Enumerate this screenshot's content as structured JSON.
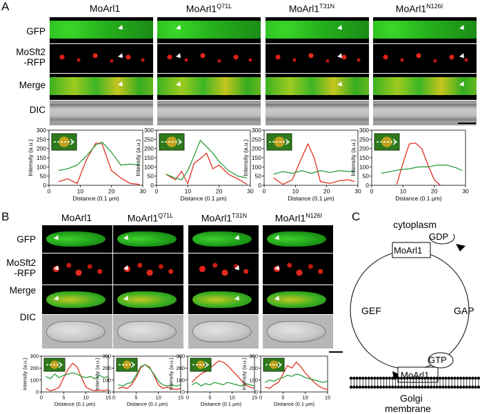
{
  "panel_a": {
    "letter": "A",
    "columns": [
      "MoArl1",
      "MoArl1",
      "MoArl1",
      "MoArl1"
    ],
    "column_sups": [
      "",
      "Q71L",
      "T31N",
      "N126I"
    ],
    "rows": [
      "GFP",
      "MoSft2\n-RFP",
      "Merge",
      "DIC"
    ],
    "chart_data": [
      {
        "type": "line",
        "ylabel": "Intensity (a.u.)",
        "xlabel": "Distance (0.1 µm)",
        "xlim": [
          0,
          30
        ],
        "ylim": [
          0,
          300
        ],
        "xticks": [
          0,
          10,
          20,
          30
        ],
        "yticks": [
          0,
          50,
          100,
          150,
          200,
          250,
          300
        ],
        "series": [
          {
            "color": "#e03020",
            "x": [
              3,
              6,
              9,
              12,
              15,
              17,
              20,
              23,
              26,
              29
            ],
            "y": [
              20,
              35,
              10,
              140,
              230,
              225,
              80,
              40,
              10,
              5
            ]
          },
          {
            "color": "#2a9d3a",
            "x": [
              3,
              6,
              9,
              12,
              15,
              17,
              20,
              23,
              26,
              29
            ],
            "y": [
              80,
              90,
              110,
              160,
              220,
              235,
              180,
              110,
              115,
              110
            ]
          }
        ]
      },
      {
        "type": "line",
        "ylabel": "Intensity (a.u.)",
        "xlabel": "Distance (0.1 µm)",
        "xlim": [
          0,
          30
        ],
        "ylim": [
          0,
          300
        ],
        "xticks": [
          0,
          10,
          20,
          30
        ],
        "yticks": [
          0,
          50,
          100,
          150,
          200,
          250,
          300
        ],
        "series": [
          {
            "color": "#e03020",
            "x": [
              3,
              6,
              8,
              10,
              12,
              14,
              16,
              18,
              20,
              23,
              26,
              29
            ],
            "y": [
              60,
              30,
              75,
              10,
              120,
              145,
              175,
              90,
              110,
              60,
              35,
              5
            ]
          },
          {
            "color": "#2a9d3a",
            "x": [
              3,
              6,
              8,
              10,
              12,
              14,
              16,
              18,
              20,
              23,
              26,
              29
            ],
            "y": [
              60,
              40,
              30,
              80,
              160,
              245,
              210,
              175,
              130,
              80,
              50,
              40
            ]
          }
        ]
      },
      {
        "type": "line",
        "ylabel": "Intensity (a.u.)",
        "xlabel": "Distance (0.1 µm)",
        "xlim": [
          0,
          30
        ],
        "ylim": [
          0,
          300
        ],
        "xticks": [
          0,
          10,
          20,
          30
        ],
        "yticks": [
          0,
          50,
          100,
          150,
          200,
          250,
          300
        ],
        "series": [
          {
            "color": "#e03020",
            "x": [
              3,
              6,
              9,
              12,
              14,
              16,
              18,
              21,
              24,
              27,
              29
            ],
            "y": [
              40,
              5,
              30,
              150,
              225,
              150,
              20,
              10,
              25,
              30,
              20
            ]
          },
          {
            "color": "#2a9d3a",
            "x": [
              3,
              6,
              9,
              12,
              15,
              18,
              21,
              24,
              27,
              29
            ],
            "y": [
              60,
              75,
              65,
              80,
              65,
              80,
              70,
              80,
              75,
              75
            ]
          }
        ]
      },
      {
        "type": "line",
        "ylabel": "Intensity (a.u.)",
        "xlabel": "Distance (0.1 µm)",
        "xlim": [
          0,
          30
        ],
        "ylim": [
          0,
          300
        ],
        "xticks": [
          0,
          10,
          20,
          30
        ],
        "yticks": [
          0,
          50,
          100,
          150,
          200,
          250,
          300
        ],
        "series": [
          {
            "color": "#e03020",
            "x": [
              8,
              10,
              12,
              14,
              16,
              18,
              20,
              22
            ],
            "y": [
              5,
              120,
              225,
              230,
              200,
              110,
              30,
              0
            ]
          },
          {
            "color": "#2a9d3a",
            "x": [
              3,
              6,
              9,
              12,
              15,
              18,
              21,
              24,
              27,
              29
            ],
            "y": [
              65,
              75,
              85,
              90,
              100,
              100,
              110,
              110,
              95,
              80
            ]
          }
        ]
      }
    ]
  },
  "panel_b": {
    "letter": "B",
    "columns": [
      "MoArl1",
      "MoArl1",
      "MoArl1",
      "MoArl1"
    ],
    "column_sups": [
      "",
      "Q71L",
      "T31N",
      "N126I"
    ],
    "rows": [
      "GFP",
      "MoSft2\n-RFP",
      "Merge",
      "DIC"
    ],
    "chart_data": [
      {
        "type": "line",
        "ylabel": "Intensity (a.u.)",
        "xlabel": "Distance (0.1 µm)",
        "xlim": [
          0,
          15
        ],
        "ylim": [
          0,
          300
        ],
        "xticks": [
          0,
          5,
          10,
          15
        ],
        "yticks": [
          0,
          100,
          200,
          300
        ],
        "series": [
          {
            "color": "#e03020",
            "x": [
              1,
              2,
              3,
              4,
              5,
              6,
              7,
              8,
              9,
              10,
              11,
              12,
              13,
              14,
              15
            ],
            "y": [
              30,
              10,
              20,
              40,
              120,
              190,
              240,
              210,
              120,
              40,
              20,
              10,
              15,
              10,
              20
            ]
          },
          {
            "color": "#2a9d3a",
            "x": [
              1,
              2,
              3,
              4,
              5,
              6,
              7,
              8,
              9,
              10,
              11,
              12,
              13,
              14,
              15
            ],
            "y": [
              130,
              110,
              150,
              120,
              140,
              150,
              160,
              150,
              130,
              120,
              130,
              110,
              140,
              120,
              130
            ]
          }
        ]
      },
      {
        "type": "line",
        "ylabel": "Intensity (a.u.)",
        "xlabel": "Distance (0.1 µm)",
        "xlim": [
          0,
          15
        ],
        "ylim": [
          0,
          300
        ],
        "xticks": [
          0,
          5,
          10,
          15
        ],
        "yticks": [
          0,
          100,
          200,
          300
        ],
        "series": [
          {
            "color": "#e03020",
            "x": [
              1,
              2,
              3,
              4,
              5,
              6,
              7,
              8,
              9,
              10,
              11,
              12,
              13,
              14,
              15
            ],
            "y": [
              30,
              40,
              30,
              60,
              120,
              200,
              230,
              210,
              140,
              60,
              30,
              40,
              30,
              20,
              30
            ]
          },
          {
            "color": "#2a9d3a",
            "x": [
              1,
              2,
              3,
              4,
              5,
              6,
              7,
              8,
              9,
              10,
              11,
              12,
              13,
              14,
              15
            ],
            "y": [
              60,
              50,
              70,
              80,
              140,
              210,
              230,
              200,
              150,
              90,
              60,
              50,
              60,
              50,
              60
            ]
          }
        ]
      },
      {
        "type": "line",
        "ylabel": "Intensity (a.u.)",
        "xlabel": "Distance (0.1 µm)",
        "xlim": [
          0,
          15
        ],
        "ylim": [
          0,
          300
        ],
        "xticks": [
          0,
          5,
          10,
          15
        ],
        "yticks": [
          0,
          100,
          200,
          300
        ],
        "series": [
          {
            "color": "#e03020",
            "x": [
              1,
              2,
              3,
              4,
              5,
              6,
              7,
              8,
              9,
              10,
              11,
              12,
              13,
              14,
              15
            ],
            "y": [
              80,
              120,
              150,
              170,
              200,
              230,
              260,
              250,
              220,
              180,
              140,
              100,
              60,
              40,
              30
            ]
          },
          {
            "color": "#2a9d3a",
            "x": [
              1,
              2,
              3,
              4,
              5,
              6,
              7,
              8,
              9,
              10,
              11,
              12,
              13,
              14,
              15
            ],
            "y": [
              60,
              80,
              50,
              70,
              60,
              80,
              70,
              60,
              80,
              70,
              60,
              50,
              70,
              60,
              50
            ]
          }
        ]
      },
      {
        "type": "line",
        "ylabel": "Intensity (a.u.)",
        "xlabel": "Distance (0.1 µm)",
        "xlim": [
          0,
          15
        ],
        "ylim": [
          0,
          300
        ],
        "xticks": [
          0,
          5,
          10,
          15
        ],
        "yticks": [
          0,
          100,
          200,
          300
        ],
        "series": [
          {
            "color": "#e03020",
            "x": [
              1,
              2,
              3,
              4,
              5,
              6,
              7,
              8,
              9,
              10,
              11,
              12,
              13,
              14,
              15
            ],
            "y": [
              40,
              30,
              60,
              80,
              150,
              220,
              200,
              250,
              210,
              160,
              120,
              80,
              50,
              30,
              20
            ]
          },
          {
            "color": "#2a9d3a",
            "x": [
              1,
              2,
              3,
              4,
              5,
              6,
              7,
              8,
              9,
              10,
              11,
              12,
              13,
              14,
              15
            ],
            "y": [
              80,
              100,
              90,
              110,
              120,
              140,
              130,
              150,
              140,
              120,
              110,
              100,
              90,
              80,
              90
            ]
          }
        ]
      }
    ]
  },
  "panel_c": {
    "letter": "C",
    "cytoplasm_label": "cytoplasm",
    "gdp_label": "GDP",
    "gtp_label": "GTP",
    "top_box_label": "MoArl1",
    "bottom_box_label": "MoArl1",
    "gef_label": "GEF",
    "gap_label": "GAP",
    "membrane_label_line1": "Golgi",
    "membrane_label_line2": "membrane"
  }
}
